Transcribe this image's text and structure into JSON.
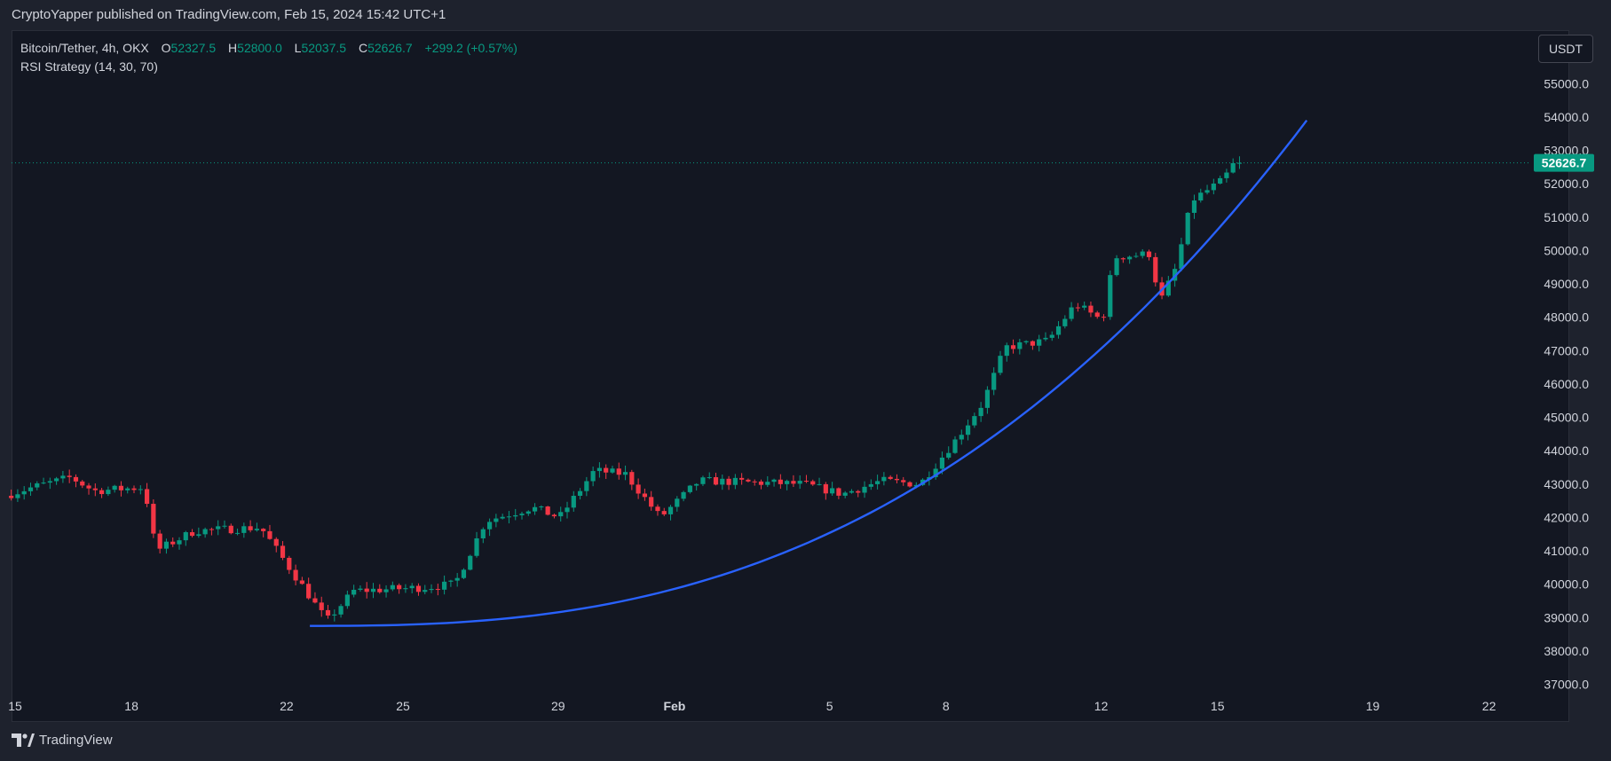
{
  "header": {
    "published_text": "CryptoYapper published on TradingView.com, Feb 15, 2024 15:42 UTC+1"
  },
  "legend": {
    "symbol": "Bitcoin/Tether, 4h, OKX",
    "open_label": "O",
    "open": "52327.5",
    "high_label": "H",
    "high": "52800.0",
    "low_label": "L",
    "low": "52037.5",
    "close_label": "C",
    "close": "52626.7",
    "change": "+299.2 (+0.57%)",
    "indicator": "RSI Strategy (14, 30, 70)"
  },
  "currency_button": "USDT",
  "footer": {
    "brand": "TradingView"
  },
  "colors": {
    "up": "#089981",
    "down": "#f23645",
    "curve": "#2962ff",
    "background": "#131722"
  },
  "chart_data": {
    "type": "candlestick",
    "symbol": "Bitcoin/Tether",
    "timeframe": "4h",
    "ylim": [
      36500,
      56000
    ],
    "y_ticks": [
      37000,
      38000,
      39000,
      40000,
      41000,
      42000,
      43000,
      44000,
      45000,
      46000,
      47000,
      48000,
      49000,
      50000,
      51000,
      52000,
      53000,
      54000,
      55000
    ],
    "y_tick_labels": [
      "37000.0",
      "38000.0",
      "39000.0",
      "40000.0",
      "41000.0",
      "42000.0",
      "43000.0",
      "44000.0",
      "45000.0",
      "46000.0",
      "47000.0",
      "48000.0",
      "49000.0",
      "50000.0",
      "51000.0",
      "52000.0",
      "53000.0",
      "54000.0",
      "55000.0"
    ],
    "x_ticks": [
      {
        "label": "15",
        "day": 0
      },
      {
        "label": "18",
        "day": 3
      },
      {
        "label": "22",
        "day": 7
      },
      {
        "label": "25",
        "day": 10
      },
      {
        "label": "29",
        "day": 14
      },
      {
        "label": "Feb",
        "day": 17
      },
      {
        "label": "5",
        "day": 21
      },
      {
        "label": "8",
        "day": 24
      },
      {
        "label": "12",
        "day": 28
      },
      {
        "label": "15",
        "day": 31
      },
      {
        "label": "19",
        "day": 35
      },
      {
        "label": "22",
        "day": 38
      }
    ],
    "last_price": 52626.7,
    "last_price_label": "52626.7",
    "anchors": [
      {
        "day": -0.1,
        "price": 42650
      },
      {
        "day": 0.6,
        "price": 42900
      },
      {
        "day": 1.6,
        "price": 43200
      },
      {
        "day": 2.2,
        "price": 42800
      },
      {
        "day": 3.5,
        "price": 42900
      },
      {
        "day": 3.8,
        "price": 41000
      },
      {
        "day": 4.8,
        "price": 41600
      },
      {
        "day": 6.5,
        "price": 41700
      },
      {
        "day": 7.6,
        "price": 39900
      },
      {
        "day": 8.2,
        "price": 38900
      },
      {
        "day": 8.9,
        "price": 39800
      },
      {
        "day": 10.7,
        "price": 39900
      },
      {
        "day": 11.5,
        "price": 40000
      },
      {
        "day": 12.3,
        "price": 41900
      },
      {
        "day": 13.5,
        "price": 42300
      },
      {
        "day": 14.2,
        "price": 42000
      },
      {
        "day": 15.1,
        "price": 43400
      },
      {
        "day": 15.9,
        "price": 43300
      },
      {
        "day": 16.8,
        "price": 42000
      },
      {
        "day": 17.8,
        "price": 43100
      },
      {
        "day": 20.5,
        "price": 43000
      },
      {
        "day": 21.5,
        "price": 42700
      },
      {
        "day": 22.5,
        "price": 43100
      },
      {
        "day": 23.5,
        "price": 43000
      },
      {
        "day": 24.4,
        "price": 44300
      },
      {
        "day": 25.1,
        "price": 45400
      },
      {
        "day": 25.7,
        "price": 47100
      },
      {
        "day": 26.8,
        "price": 47300
      },
      {
        "day": 27.5,
        "price": 48400
      },
      {
        "day": 28.2,
        "price": 47900
      },
      {
        "day": 28.5,
        "price": 49800
      },
      {
        "day": 29.4,
        "price": 49900
      },
      {
        "day": 29.7,
        "price": 48500
      },
      {
        "day": 30.1,
        "price": 49500
      },
      {
        "day": 30.5,
        "price": 51500
      },
      {
        "day": 31.3,
        "price": 52100
      },
      {
        "day": 31.6,
        "price": 52626.7
      }
    ],
    "support_curve": {
      "start": {
        "day": 7.6,
        "price": 38750
      },
      "end": {
        "day": 33.3,
        "price": 53900
      },
      "exponent": 2.6,
      "color": "#2962ff"
    }
  }
}
